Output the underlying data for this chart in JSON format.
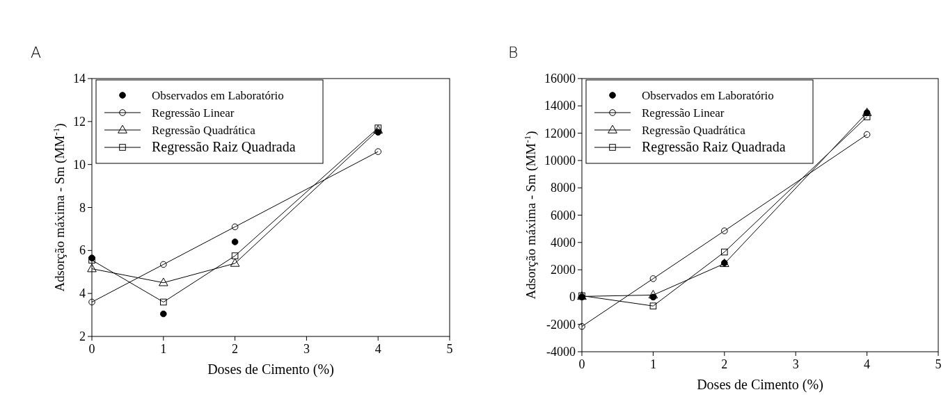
{
  "chart_data": [
    {
      "type": "line",
      "title": "A",
      "xlabel": "Doses de Cimento (%)",
      "ylabel": "Adsorção máxima - Sm (MM$^{-1}$)",
      "xlim": [
        0,
        5
      ],
      "xticks": [
        0,
        1,
        2,
        3,
        4,
        5
      ],
      "ylim": [
        2,
        14
      ],
      "yticks": [
        2,
        4,
        6,
        8,
        10,
        12,
        14
      ],
      "grid": false,
      "legend": "top left",
      "x": [
        0,
        1,
        2,
        4
      ],
      "series": [
        {
          "name": "Observados em Laboratório",
          "type": "scatter",
          "marker": "circle",
          "color": "#000000",
          "values": [
            5.65,
            3.05,
            6.4,
            11.5
          ]
        },
        {
          "name": "Regressão Linear",
          "type": "line",
          "marker": "circle",
          "color": "#000000",
          "values": [
            3.6,
            5.35,
            7.1,
            10.6
          ]
        },
        {
          "name": "Regressão Quadrática",
          "type": "line",
          "marker": "triangle",
          "color": "#000000",
          "values": [
            5.15,
            4.5,
            5.4,
            11.6
          ]
        },
        {
          "name": "Regressão Raiz Quadrada",
          "type": "line",
          "marker": "square",
          "color": "#000000",
          "values": [
            5.55,
            3.6,
            5.75,
            11.7
          ]
        }
      ]
    },
    {
      "type": "line",
      "title": "B",
      "xlabel": "Doses de Cimento (%)",
      "ylabel": "Adsorção máxima - Sm (MM$^{-1}$)",
      "xlim": [
        0,
        5
      ],
      "xticks": [
        0,
        1,
        2,
        3,
        4,
        5
      ],
      "ylim": [
        -4000,
        16000
      ],
      "yticks": [
        -4000,
        -2000,
        0,
        2000,
        4000,
        6000,
        8000,
        10000,
        12000,
        14000,
        16000
      ],
      "grid": false,
      "legend": "top left",
      "x": [
        0,
        1,
        2,
        4
      ],
      "series": [
        {
          "name": "Observados em Laboratório",
          "type": "scatter",
          "marker": "circle",
          "color": "#000000",
          "values": [
            0,
            0,
            2500,
            13500
          ]
        },
        {
          "name": "Regressão Linear",
          "type": "line",
          "marker": "circle",
          "color": "#000000",
          "values": [
            -2150,
            1350,
            4850,
            11900
          ]
        },
        {
          "name": "Regressão Quadrática",
          "type": "line",
          "marker": "triangle",
          "color": "#000000",
          "values": [
            50,
            150,
            2450,
            13500
          ]
        },
        {
          "name": "Regressão Raiz Quadrada",
          "type": "line",
          "marker": "square",
          "color": "#000000",
          "values": [
            100,
            -650,
            3300,
            13200
          ]
        }
      ]
    }
  ]
}
